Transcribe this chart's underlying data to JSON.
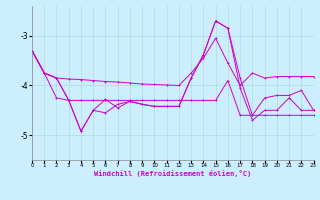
{
  "xlabel": "Windchill (Refroidissement éolien,°C)",
  "background_color": "#cceeff",
  "grid_color": "#aadddd",
  "line_color": "#cc00cc",
  "xlim": [
    0,
    23
  ],
  "ylim": [
    -5.5,
    -2.4
  ],
  "yticks": [
    -5,
    -4,
    -3
  ],
  "xticks": [
    0,
    1,
    2,
    3,
    4,
    5,
    6,
    7,
    8,
    9,
    10,
    11,
    12,
    13,
    14,
    15,
    16,
    17,
    18,
    19,
    20,
    21,
    22,
    23
  ],
  "line1": [
    -3.3,
    -3.75,
    -3.85,
    -3.87,
    -3.88,
    -3.9,
    -3.92,
    -3.93,
    -3.95,
    -3.97,
    -3.98,
    -3.99,
    -4.0,
    -3.75,
    -3.45,
    -3.05,
    -3.55,
    -4.0,
    -3.75,
    -3.85,
    -3.82,
    -3.82,
    -3.82,
    -3.82
  ],
  "line2": [
    -3.3,
    -3.75,
    -4.25,
    -4.3,
    -4.92,
    -4.5,
    -4.55,
    -4.38,
    -4.32,
    -4.38,
    -4.42,
    -4.42,
    -4.42,
    -3.85,
    -3.38,
    -2.7,
    -2.85,
    -4.05,
    -4.7,
    -4.5,
    -4.5,
    -4.25,
    -4.5,
    -4.5
  ],
  "line3": [
    -3.3,
    -3.75,
    -3.85,
    -4.3,
    -4.92,
    -4.5,
    -4.28,
    -4.45,
    -4.32,
    -4.38,
    -4.42,
    -4.42,
    -4.42,
    -3.85,
    -3.38,
    -2.7,
    -2.85,
    -3.85,
    -4.6,
    -4.25,
    -4.2,
    -4.2,
    -4.1,
    -4.5
  ],
  "line4": [
    -3.3,
    -3.75,
    -3.85,
    -4.3,
    -4.3,
    -4.3,
    -4.3,
    -4.3,
    -4.3,
    -4.3,
    -4.3,
    -4.3,
    -4.3,
    -4.3,
    -4.3,
    -4.3,
    -3.9,
    -4.6,
    -4.6,
    -4.6,
    -4.6,
    -4.6,
    -4.6,
    -4.6
  ]
}
